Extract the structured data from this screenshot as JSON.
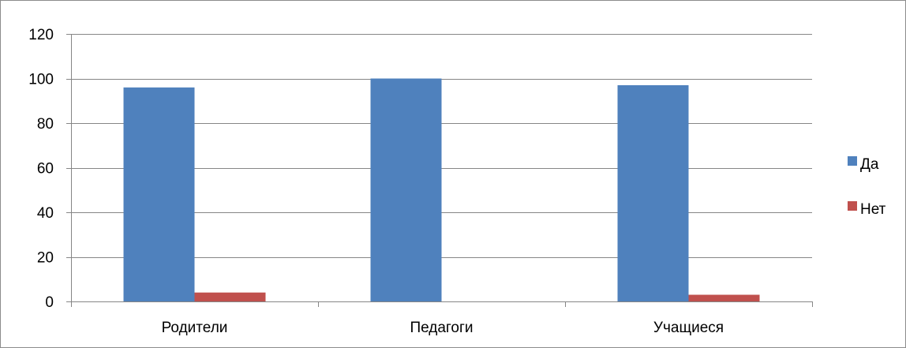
{
  "chart_data": {
    "type": "bar",
    "categories": [
      "Родители",
      "Педагоги",
      "Учащиеся"
    ],
    "series": [
      {
        "name": "Да",
        "values": [
          96,
          100,
          97
        ],
        "color": "#4F81BD"
      },
      {
        "name": "Нет",
        "values": [
          4,
          0,
          3
        ],
        "color": "#C0504D"
      }
    ],
    "title": "",
    "xlabel": "",
    "ylabel": "",
    "ylim": [
      0,
      120
    ],
    "yticks": [
      0,
      20,
      40,
      60,
      80,
      100,
      120
    ],
    "grid": true,
    "legend_position": "right"
  }
}
